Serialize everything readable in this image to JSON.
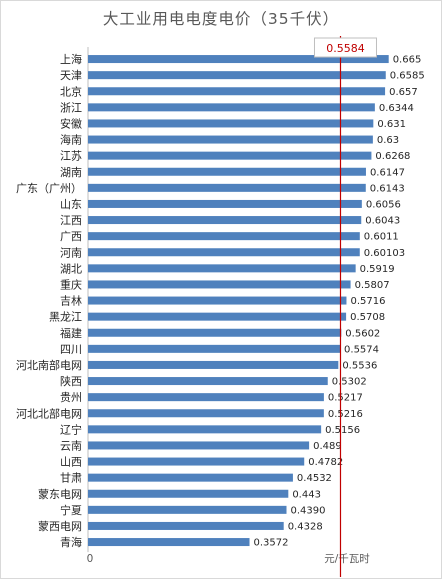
{
  "chart_data": {
    "type": "bar",
    "orientation": "horizontal",
    "title": "大工业用电电度电价（35千伏）",
    "xlabel": "元/千瓦时",
    "x_tick_labels": [
      "0"
    ],
    "xlim": [
      0,
      0.69
    ],
    "grid": false,
    "bar_color": "#4f81bd",
    "reference_line": {
      "value": 0.5584,
      "label": "0.5584",
      "color": "#c00000"
    },
    "categories": [
      "上海",
      "天津",
      "北京",
      "浙江",
      "安徽",
      "海南",
      "江苏",
      "湖南",
      "广东（广州）",
      "山东",
      "江西",
      "广西",
      "河南",
      "湖北",
      "重庆",
      "吉林",
      "黑龙江",
      "福建",
      "四川",
      "河北南部电网",
      "陕西",
      "贵州",
      "河北北部电网",
      "辽宁",
      "云南",
      "山西",
      "甘肃",
      "蒙东电网",
      "宁夏",
      "蒙西电网",
      "青海"
    ],
    "values": [
      0.665,
      0.6585,
      0.657,
      0.6344,
      0.631,
      0.63,
      0.6268,
      0.6147,
      0.6143,
      0.6056,
      0.6043,
      0.6011,
      0.60103,
      0.5919,
      0.5807,
      0.5716,
      0.5708,
      0.5602,
      0.5574,
      0.5536,
      0.5302,
      0.5217,
      0.5216,
      0.5156,
      0.489,
      0.4782,
      0.4532,
      0.443,
      0.439,
      0.4328,
      0.3572
    ],
    "value_labels": [
      "0.665",
      "0.6585",
      "0.657",
      "0.6344",
      "0.631",
      "0.63",
      "0.6268",
      "0.6147",
      "0.6143",
      "0.6056",
      "0.6043",
      "0.6011",
      "0.60103",
      "0.5919",
      "0.5807",
      "0.5716",
      "0.5708",
      "0.5602",
      "0.5574",
      "0.5536",
      "0.5302",
      "0.5217",
      "0.5216",
      "0.5156",
      "0.489",
      "0.4782",
      "0.4532",
      "0.443",
      "0.4390",
      "0.4328",
      "0.3572"
    ]
  }
}
